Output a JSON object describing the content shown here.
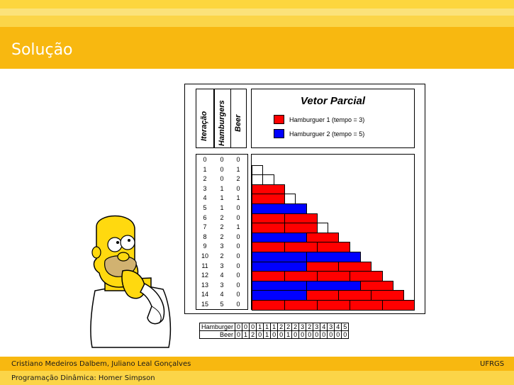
{
  "slide": {
    "title": "Solução"
  },
  "figure": {
    "col_headers": [
      "Iteração",
      "Hamburgers",
      "Beer"
    ],
    "chart_title": "Vetor Parcial",
    "legend": [
      {
        "label": "Hamburguer 1 (tempo = 3)",
        "color": "#ff0000"
      },
      {
        "label": "Hamburguer 2 (tempo = 5)",
        "color": "#0000ff"
      }
    ],
    "rows": [
      {
        "it": "0",
        "h": "0",
        "b": "0",
        "blocks": []
      },
      {
        "it": "1",
        "h": "0",
        "b": "1",
        "blocks": [
          "w"
        ]
      },
      {
        "it": "2",
        "h": "0",
        "b": "2",
        "blocks": [
          "w",
          "w"
        ]
      },
      {
        "it": "3",
        "h": "1",
        "b": "0",
        "blocks": [
          "r3"
        ]
      },
      {
        "it": "4",
        "h": "1",
        "b": "1",
        "blocks": [
          "r3",
          "w"
        ]
      },
      {
        "it": "5",
        "h": "1",
        "b": "0",
        "blocks": [
          "b5"
        ]
      },
      {
        "it": "6",
        "h": "2",
        "b": "0",
        "blocks": [
          "r3",
          "r3"
        ]
      },
      {
        "it": "7",
        "h": "2",
        "b": "1",
        "blocks": [
          "r3",
          "r3",
          "w"
        ]
      },
      {
        "it": "8",
        "h": "2",
        "b": "0",
        "blocks": [
          "b5",
          "r3"
        ]
      },
      {
        "it": "9",
        "h": "3",
        "b": "0",
        "blocks": [
          "r3",
          "r3",
          "r3"
        ]
      },
      {
        "it": "10",
        "h": "2",
        "b": "0",
        "blocks": [
          "b5",
          "b5"
        ]
      },
      {
        "it": "11",
        "h": "3",
        "b": "0",
        "blocks": [
          "b5",
          "r3",
          "r3"
        ]
      },
      {
        "it": "12",
        "h": "4",
        "b": "0",
        "blocks": [
          "r3",
          "r3",
          "r3",
          "r3"
        ]
      },
      {
        "it": "13",
        "h": "3",
        "b": "0",
        "blocks": [
          "b5",
          "b5",
          "r3"
        ]
      },
      {
        "it": "14",
        "h": "4",
        "b": "0",
        "blocks": [
          "b5",
          "r3",
          "r3",
          "r3"
        ]
      },
      {
        "it": "15",
        "h": "5",
        "b": "0",
        "blocks": [
          "r3",
          "r3",
          "r3",
          "r3",
          "r3"
        ]
      }
    ]
  },
  "summary_table": {
    "hamburger_label": "Hamburger",
    "beer_label": "Beer",
    "hamburger": [
      "0",
      "0",
      "0",
      "1",
      "1",
      "1",
      "2",
      "2",
      "2",
      "3",
      "2",
      "3",
      "4",
      "3",
      "4",
      "5"
    ],
    "beer": [
      "0",
      "1",
      "2",
      "0",
      "1",
      "0",
      "0",
      "1",
      "0",
      "0",
      "0",
      "0",
      "0",
      "0",
      "0",
      "0"
    ]
  },
  "footer": {
    "authors": "Cristiano Medeiros Dalbem, Juliano Leal Gonçalves",
    "institution": "UFRGS",
    "subtitle": "Programação Dinâmica: Homer Simpson"
  }
}
